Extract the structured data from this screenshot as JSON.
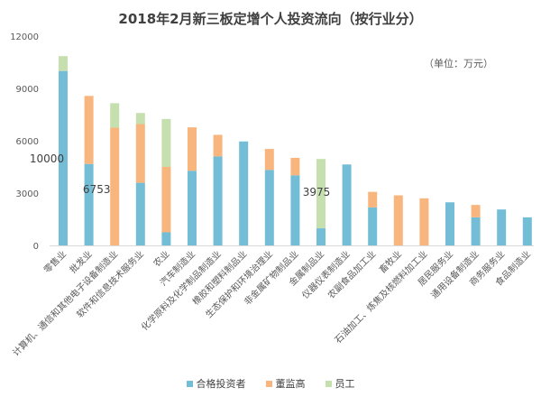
{
  "chart_data": {
    "type": "bar",
    "stacked": true,
    "title": "2018年2月新三板定增个人投资流向（按行业分）",
    "unit_note": "（单位：万元）",
    "ylim": [
      0,
      12000
    ],
    "yticks": [
      "0",
      "3000",
      "6000",
      "9000",
      "12000"
    ],
    "grid": false,
    "legend_position": "bottom",
    "categories": [
      "零售业",
      "批发业",
      "计算机、通信和其他电子设备制造业",
      "软件和信息技术服务业",
      "农业",
      "汽车制造业",
      "化学原料及化学制品制造业",
      "橡胶和塑料制品业",
      "生态保护和环境治理业",
      "非金属矿物制品业",
      "金属制品业",
      "仪器仪表制造业",
      "农副食品加工业",
      "畜牧业",
      "石油加工、炼焦及核燃料加工业",
      "居民服务业",
      "通用设备制造业",
      "商务服务业",
      "食品制造业"
    ],
    "series": [
      {
        "name": "合格投资者",
        "color": "#73BDD6",
        "values": [
          10000,
          4670,
          0,
          3590,
          750,
          4280,
          5100,
          5960,
          4330,
          4020,
          980,
          4640,
          2180,
          0,
          0,
          2470,
          1610,
          2060,
          1610
        ]
      },
      {
        "name": "董监高",
        "color": "#F8B67E",
        "values": [
          0,
          3900,
          6753,
          3370,
          3750,
          2490,
          1240,
          0,
          1200,
          1000,
          0,
          0,
          890,
          2870,
          2700,
          0,
          710,
          0,
          0
        ]
      },
      {
        "name": "员工",
        "color": "#C6DFAE",
        "values": [
          850,
          0,
          1400,
          630,
          2750,
          0,
          0,
          0,
          0,
          0,
          3975,
          0,
          0,
          0,
          0,
          0,
          0,
          0,
          0
        ]
      }
    ],
    "data_labels": [
      {
        "category": "零售业",
        "text": "10000"
      },
      {
        "category": "计算机、通信和其他电子设备制造业",
        "text": "6753"
      },
      {
        "category": "金属制品业",
        "text": "3975"
      }
    ]
  }
}
